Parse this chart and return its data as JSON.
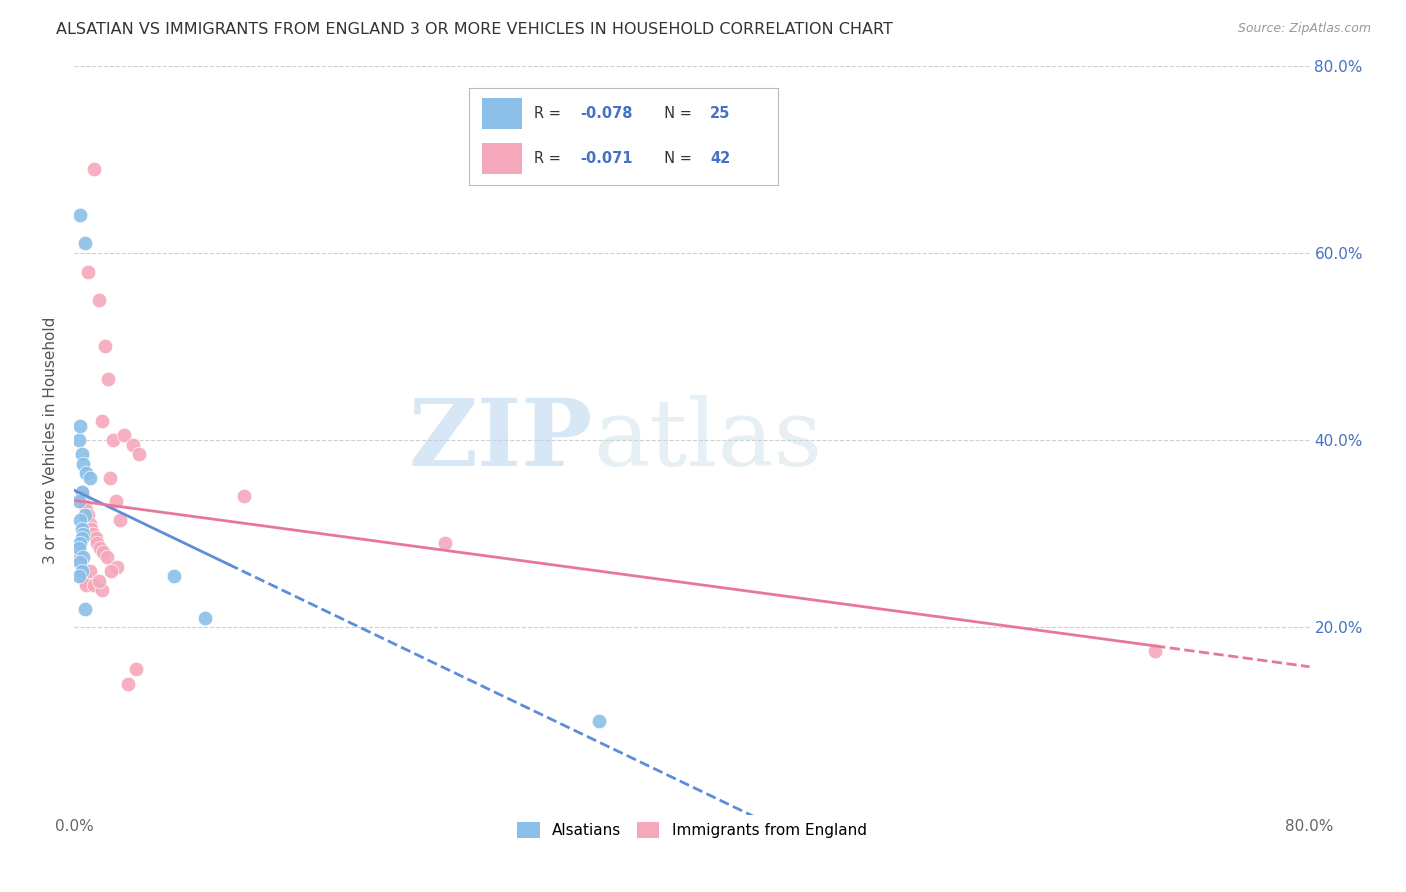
{
  "title": "ALSATIAN VS IMMIGRANTS FROM ENGLAND 3 OR MORE VEHICLES IN HOUSEHOLD CORRELATION CHART",
  "source": "Source: ZipAtlas.com",
  "ylabel": "3 or more Vehicles in Household",
  "background_color": "#ffffff",
  "grid_color": "#d0d0d0",
  "watermark_zip": "ZIP",
  "watermark_atlas": "atlas",
  "blue_color": "#8BBFE8",
  "pink_color": "#F5A8BC",
  "blue_line_color": "#5B8DD9",
  "pink_line_color": "#E8789A",
  "blue_r": "-0.078",
  "blue_n": "25",
  "pink_r": "-0.071",
  "pink_n": "42",
  "alsatian_x": [
    0.4,
    0.7,
    0.4,
    0.3,
    0.5,
    0.6,
    0.8,
    1.0,
    0.5,
    0.3,
    0.7,
    0.4,
    0.5,
    0.6,
    0.5,
    0.4,
    0.3,
    0.6,
    0.4,
    0.5,
    0.3,
    6.5,
    0.7,
    8.5,
    34.0
  ],
  "alsatian_y": [
    64.0,
    61.0,
    41.5,
    40.0,
    38.5,
    37.5,
    36.5,
    36.0,
    34.5,
    33.5,
    32.0,
    31.5,
    30.5,
    30.0,
    29.5,
    29.0,
    28.5,
    27.5,
    27.0,
    26.0,
    25.5,
    25.5,
    22.0,
    21.0,
    10.0
  ],
  "england_x": [
    1.3,
    0.9,
    1.6,
    2.0,
    2.2,
    1.8,
    2.5,
    3.2,
    3.8,
    0.5,
    0.6,
    0.7,
    0.8,
    0.9,
    1.0,
    1.1,
    1.2,
    1.4,
    1.5,
    1.7,
    1.9,
    2.1,
    2.3,
    2.7,
    3.0,
    4.2,
    0.4,
    0.5,
    0.6,
    0.7,
    0.8,
    1.0,
    1.3,
    1.8,
    2.8,
    11.0,
    24.0,
    4.0,
    3.5,
    2.4,
    1.6,
    70.0
  ],
  "england_y": [
    69.0,
    58.0,
    55.0,
    50.0,
    46.5,
    42.0,
    40.0,
    40.5,
    39.5,
    34.5,
    34.0,
    33.0,
    32.5,
    32.0,
    31.0,
    30.5,
    30.0,
    29.5,
    29.0,
    28.5,
    28.0,
    27.5,
    36.0,
    33.5,
    31.5,
    38.5,
    27.5,
    26.5,
    25.5,
    25.0,
    24.5,
    26.0,
    24.5,
    24.0,
    26.5,
    34.0,
    29.0,
    15.5,
    14.0,
    26.0,
    25.0,
    17.5
  ],
  "xlim": [
    0,
    80
  ],
  "ylim": [
    0,
    80
  ],
  "xtick_positions": [
    0,
    16,
    32,
    48,
    64,
    80
  ],
  "xtick_labels": [
    "0.0%",
    "",
    "",
    "",
    "",
    "80.0%"
  ],
  "ytick_positions": [
    20,
    40,
    60,
    80
  ],
  "ytick_labels_right": [
    "20.0%",
    "40.0%",
    "60.0%",
    "80.0%"
  ],
  "blue_solid_end": 10.0,
  "pink_solid_end": 70.0
}
